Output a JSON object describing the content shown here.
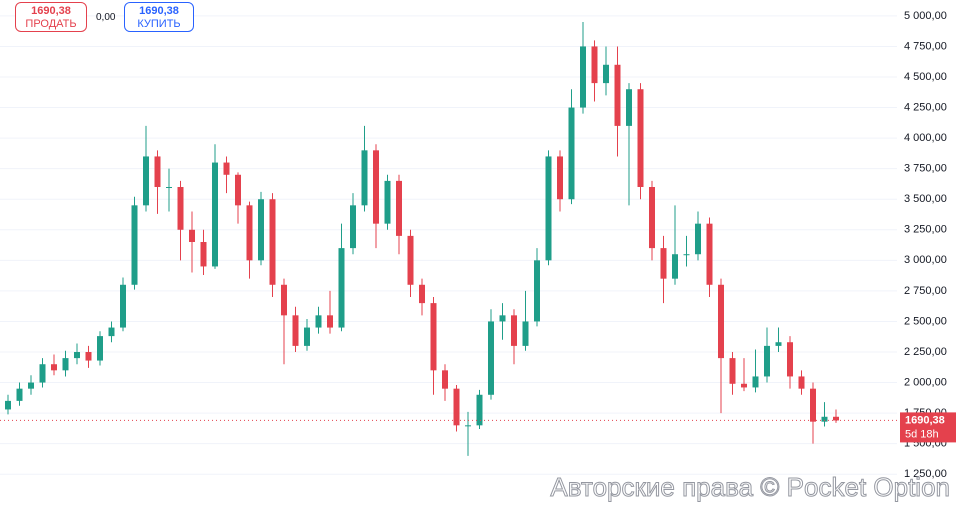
{
  "header": {
    "sell_price": "1690,38",
    "sell_label": "ПРОДАТЬ",
    "spread": "0,00",
    "buy_price": "1690,38",
    "buy_label": "КУПИТЬ"
  },
  "chart_data": {
    "type": "candlestick",
    "open": [
      1780,
      1850,
      1950,
      2000,
      2150,
      2100,
      2200,
      2250,
      2180,
      2380,
      2450,
      2800,
      3450,
      3850,
      3600,
      3600,
      3250,
      3150,
      2950,
      3800,
      3700,
      3450,
      3000,
      3500,
      2800,
      2550,
      2300,
      2450,
      2550,
      2450,
      3100,
      3450,
      3900,
      3300,
      3650,
      3200,
      2800,
      2650,
      2100,
      1950,
      1650,
      1650,
      1900,
      2500,
      2550,
      2300,
      2500,
      3000,
      3850,
      3500,
      4250,
      4750,
      4450,
      4600,
      4100,
      4400,
      3600,
      3100,
      2850,
      3050,
      3050,
      3300,
      2800,
      2200,
      1990,
      1960,
      2050,
      2300,
      2330,
      2050,
      1950,
      1680,
      1720
    ],
    "high": [
      1900,
      2000,
      2060,
      2200,
      2230,
      2260,
      2320,
      2300,
      2420,
      2500,
      2860,
      3520,
      4100,
      3900,
      3750,
      3650,
      3400,
      3250,
      3950,
      3850,
      3720,
      3480,
      3560,
      3550,
      2850,
      2620,
      2520,
      2620,
      2750,
      3300,
      3550,
      4100,
      3950,
      3700,
      3700,
      3250,
      2850,
      2700,
      2150,
      1980,
      1760,
      1940,
      2600,
      2650,
      2600,
      2750,
      3100,
      3900,
      3900,
      4400,
      4950,
      4800,
      4750,
      4750,
      4450,
      4450,
      3650,
      3200,
      3450,
      3200,
      3400,
      3350,
      2850,
      2250,
      2200,
      2270,
      2450,
      2450,
      2380,
      2100,
      2000,
      1840,
      1780
    ],
    "low": [
      1740,
      1810,
      1900,
      1960,
      2060,
      2050,
      2150,
      2120,
      2140,
      2330,
      2420,
      2760,
      3400,
      3380,
      3400,
      3000,
      2900,
      2880,
      2930,
      3550,
      3300,
      2850,
      2960,
      2700,
      2150,
      2250,
      2260,
      2400,
      2400,
      2420,
      3050,
      3400,
      3100,
      3250,
      3050,
      2700,
      2550,
      1900,
      1850,
      1600,
      1400,
      1620,
      1860,
      2350,
      2150,
      2260,
      2460,
      2960,
      3400,
      3460,
      4200,
      4300,
      4350,
      3850,
      3450,
      3500,
      3000,
      2650,
      2800,
      2950,
      3000,
      2700,
      1750,
      1900,
      1930,
      1920,
      2000,
      2250,
      1950,
      1900,
      1500,
      1640,
      1670
    ],
    "close": [
      1850,
      1950,
      2000,
      2150,
      2100,
      2200,
      2250,
      2180,
      2380,
      2450,
      2800,
      3450,
      3850,
      3600,
      3600,
      3250,
      3150,
      2950,
      3800,
      3700,
      3450,
      3000,
      3500,
      2800,
      2550,
      2300,
      2450,
      2550,
      2450,
      3100,
      3450,
      3900,
      3300,
      3650,
      3200,
      2800,
      2650,
      2100,
      1950,
      1650,
      1650,
      1900,
      2500,
      2550,
      2300,
      2500,
      3000,
      3850,
      3500,
      4250,
      4750,
      4450,
      4600,
      4100,
      4400,
      3600,
      3100,
      2850,
      3050,
      3050,
      3300,
      2800,
      2200,
      1990,
      1960,
      2050,
      2300,
      2330,
      2050,
      1950,
      1680,
      1720,
      1690
    ],
    "up_color": "#1f9e89",
    "down_color": "#e4414d",
    "ylim": [
      990,
      5130
    ],
    "yticks": [
      {
        "value": 1250,
        "label": "1 250,00"
      },
      {
        "value": 1500,
        "label": "1 500,00"
      },
      {
        "value": 1750,
        "label": "1 750,00"
      },
      {
        "value": 2000,
        "label": "2 000,00"
      },
      {
        "value": 2250,
        "label": "2 250,00"
      },
      {
        "value": 2500,
        "label": "2 500,00"
      },
      {
        "value": 2750,
        "label": "2 750,00"
      },
      {
        "value": 3000,
        "label": "3 000,00"
      },
      {
        "value": 3250,
        "label": "3 250,00"
      },
      {
        "value": 3500,
        "label": "3 500,00"
      },
      {
        "value": 3750,
        "label": "3 750,00"
      },
      {
        "value": 4000,
        "label": "4 000,00"
      },
      {
        "value": 4250,
        "label": "4 250,00"
      },
      {
        "value": 4500,
        "label": "4 500,00"
      },
      {
        "value": 4750,
        "label": "4 750,00"
      },
      {
        "value": 5000,
        "label": "5 000,00"
      }
    ],
    "grid": true,
    "last_price": {
      "value": 1690.38,
      "label": "1690,38"
    },
    "countdown": "5d 18h",
    "watermark": "Авторские права © Pocket Option"
  }
}
